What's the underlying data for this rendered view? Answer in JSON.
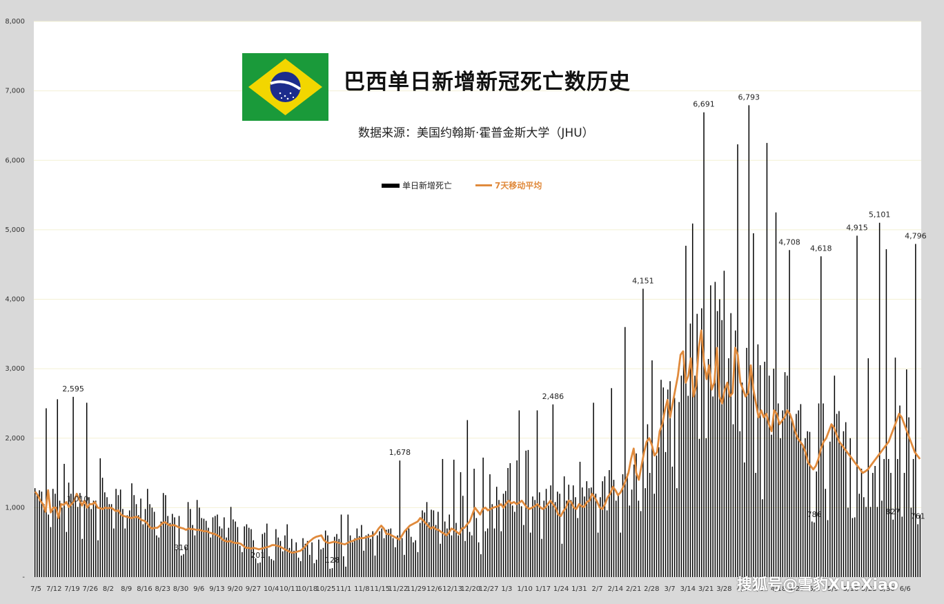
{
  "chart_data": {
    "type": "bar",
    "title": "巴西单日新增新冠死亡数历史",
    "subtitle": "数据来源：美国约翰斯·霍普金斯大学（JHU）",
    "ylim": [
      0,
      8000
    ],
    "y_ticks": [
      "-",
      "1,000",
      "2,000",
      "3,000",
      "4,000",
      "5,000",
      "6,000",
      "7,000",
      "8,000"
    ],
    "x_tick_labels": [
      "7/5",
      "7/12",
      "7/19",
      "7/26",
      "8/2",
      "8/9",
      "8/16",
      "8/23",
      "8/30",
      "9/6",
      "9/13",
      "9/20",
      "9/27",
      "10/4",
      "10/11",
      "10/18",
      "10/25",
      "11/1",
      "11/8",
      "11/15",
      "11/22",
      "11/29",
      "12/6",
      "12/13",
      "12/20",
      "12/27",
      "1/3",
      "1/10",
      "1/17",
      "1/24",
      "1/31",
      "2/7",
      "2/14",
      "2/21",
      "2/28",
      "3/7",
      "3/14",
      "3/21",
      "3/28",
      "4/4",
      "4/11",
      "4/18",
      "4/25",
      "5/2",
      "5/9",
      "5/16",
      "5/23",
      "5/30",
      "6/6"
    ],
    "grid": true,
    "legend_position": "top-center",
    "series": [
      {
        "name": "单日新增死亡",
        "type": "bar",
        "color": "#000000",
        "values": [
          1280,
          1200,
          1250,
          1230,
          1050,
          2430,
          900,
          720,
          1270,
          1200,
          2560,
          1100,
          1000,
          1630,
          650,
          1360,
          1200,
          2595,
          1100,
          1010,
          1210,
          550,
          1050,
          2510,
          1150,
          980,
          1100,
          1100,
          530,
          1710,
          1430,
          1220,
          1150,
          1050,
          1050,
          700,
          1270,
          1180,
          1260,
          980,
          700,
          890,
          960,
          1350,
          1180,
          1050,
          890,
          1130,
          760,
          980,
          1270,
          1050,
          1000,
          940,
          600,
          570,
          800,
          1210,
          1180,
          880,
          780,
          910,
          860,
          400,
          880,
          310,
          330,
          440,
          1080,
          980,
          750,
          600,
          1110,
          1000,
          850,
          840,
          810,
          710,
          570,
          860,
          880,
          900,
          730,
          700,
          860,
          570,
          710,
          1010,
          830,
          800,
          720,
          450,
          360,
          730,
          760,
          710,
          690,
          530,
          270,
          201,
          210,
          620,
          640,
          770,
          300,
          260,
          240,
          690,
          570,
          520,
          370,
          600,
          760,
          420,
          550,
          380,
          500,
          280,
          230,
          560,
          480,
          520,
          320,
          500,
          200,
          250,
          540,
          400,
          420,
          670,
          600,
          120,
          128,
          580,
          620,
          550,
          900,
          300,
          150,
          900,
          600,
          500,
          560,
          700,
          590,
          750,
          380,
          600,
          620,
          550,
          660,
          310,
          600,
          660,
          700,
          560,
          680,
          690,
          700,
          560,
          430,
          600,
          1678,
          560,
          320,
          680,
          700,
          580,
          500,
          530,
          360,
          780,
          960,
          930,
          1080,
          790,
          970,
          960,
          750,
          940,
          480,
          1700,
          800,
          700,
          900,
          600,
          1690,
          780,
          600,
          1510,
          1170,
          520,
          2260,
          650,
          600,
          1560,
          850,
          500,
          330,
          1720,
          660,
          700,
          1480,
          1050,
          700,
          1300,
          1110,
          660,
          1200,
          1240,
          1570,
          1640,
          1030,
          940,
          1680,
          2400,
          1020,
          750,
          1820,
          1830,
          640,
          1160,
          1110,
          2400,
          1220,
          550,
          1100,
          1270,
          1030,
          1320,
          2486,
          1080,
          1230,
          1200,
          480,
          1450,
          1100,
          1330,
          1110,
          1320,
          1150,
          850,
          1660,
          1290,
          1160,
          1380,
          1280,
          1290,
          2510,
          1200,
          640,
          1150,
          1380,
          1450,
          960,
          1540,
          2720,
          1400,
          1100,
          1200,
          640,
          1480,
          3600,
          1490,
          1030,
          1260,
          1620,
          1780,
          1100,
          950,
          4151,
          1280,
          2200,
          1500,
          3120,
          1200,
          1750,
          1870,
          2840,
          2730,
          1800,
          2700,
          2820,
          1590,
          2580,
          1280,
          2520,
          2900,
          3250,
          4770,
          2610,
          3650,
          5090,
          2900,
          3790,
          1990,
          3870,
          6691,
          2000,
          3140,
          4200,
          2600,
          4250,
          3830,
          4000,
          3700,
          4410,
          2750,
          3150,
          3800,
          2200,
          3550,
          6230,
          2100,
          2800,
          1650,
          3300,
          6793,
          2950,
          4950,
          1500,
          3350,
          3050,
          1120,
          3100,
          6250,
          2900,
          2050,
          3000,
          5250,
          2500,
          2000,
          2400,
          2950,
          2900,
          4708,
          2280,
          2150,
          2350,
          2400,
          2490,
          1900,
          2000,
          2100,
          2090,
          800,
          786,
          1520,
          2500,
          4618,
          2500,
          1270,
          820,
          1950,
          2200,
          2900,
          2350,
          2390,
          1930,
          2100,
          2230,
          1000,
          2000,
          850,
          860,
          4915,
          1200,
          1560,
          1150,
          1010,
          3150,
          1010,
          1500,
          1600,
          1010,
          5101,
          1100,
          1700,
          4720,
          1700,
          1500,
          827,
          3160,
          1700,
          2470,
          870,
          1500,
          2990,
          2300,
          1000,
          1700,
          4796,
          761,
          900
        ]
      },
      {
        "name": "7天移动平均",
        "type": "line",
        "color": "#e08a3c",
        "values": [
          1230,
          1180,
          1100,
          1050,
          940,
          1250,
          930,
          1000,
          1000,
          850,
          1050,
          1040,
          1080,
          1010,
          1050,
          1100,
          1200,
          1120,
          1030,
          1100,
          1000,
          1050,
          1050,
          1080,
          1000,
          990,
          980,
          1000,
          990,
          1000,
          980,
          950,
          960,
          900,
          880,
          870,
          860,
          850,
          860,
          870,
          850,
          820,
          810,
          780,
          720,
          700,
          710,
          710,
          740,
          780,
          790,
          760,
          740,
          750,
          740,
          720,
          710,
          700,
          680,
          700,
          690,
          690,
          680,
          680,
          670,
          660,
          660,
          640,
          630,
          620,
          600,
          580,
          540,
          520,
          510,
          520,
          500,
          490,
          490,
          480,
          450,
          420,
          420,
          410,
          420,
          410,
          400,
          410,
          420,
          430,
          440,
          460,
          460,
          450,
          440,
          420,
          400,
          380,
          360,
          350,
          360,
          370,
          380,
          410,
          450,
          500,
          530,
          560,
          580,
          590,
          600,
          530,
          500,
          490,
          500,
          510,
          500,
          490,
          480,
          470,
          490,
          510,
          520,
          540,
          550,
          560,
          560,
          570,
          580,
          590,
          600,
          640,
          700,
          740,
          700,
          620,
          620,
          600,
          580,
          560,
          540,
          600,
          660,
          700,
          740,
          760,
          780,
          800,
          850,
          820,
          780,
          740,
          700,
          720,
          690,
          680,
          650,
          630,
          600,
          640,
          700,
          680,
          650,
          620,
          700,
          710,
          760,
          800,
          900,
          1000,
          950,
          900,
          980,
          1000,
          960,
          980,
          1000,
          1010,
          1020,
          1050,
          1000,
          1060,
          1100,
          1060,
          1080,
          1050,
          1070,
          1100,
          1050,
          1000,
          980,
          1000,
          1020,
          1050,
          1010,
          980,
          1000,
          1050,
          1100,
          1050,
          1000,
          900,
          880,
          950,
          1000,
          1100,
          1080,
          1000,
          980,
          1050,
          1020,
          1010,
          1080,
          1100,
          1200,
          1150,
          1080,
          1000,
          980,
          1050,
          1150,
          1200,
          1300,
          1250,
          1180,
          1220,
          1300,
          1400,
          1500,
          1700,
          1850,
          1500,
          1400,
          1600,
          1800,
          1950,
          2000,
          1900,
          1750,
          1800,
          2100,
          2200,
          2400,
          2550,
          2300,
          2500,
          2700,
          2900,
          3200,
          3250,
          2800,
          2900,
          3150,
          2600,
          2750,
          3300,
          3550,
          3100,
          2850,
          3050,
          2700,
          2800,
          3300,
          2600,
          2500,
          2700,
          2800,
          2600,
          2650,
          3300,
          3200,
          2800,
          2700,
          2600,
          2650,
          3050,
          2700,
          2500,
          2300,
          2400,
          2300,
          2350,
          2200,
          2100,
          2400,
          2350,
          2200,
          2250,
          2300,
          2400,
          2350,
          2250,
          2100,
          2000,
          1950,
          1900,
          1800,
          1650,
          1600,
          1550,
          1600,
          1700,
          1850,
          1950,
          2000,
          2100,
          2200,
          2150,
          2050,
          1950,
          1900,
          1850,
          1800,
          1750,
          1700,
          1650,
          1600,
          1550,
          1500,
          1520,
          1550,
          1600,
          1650,
          1700,
          1750,
          1800,
          1850,
          1900,
          1950,
          2050,
          2150,
          2250,
          2350,
          2300,
          2200,
          2100,
          2000,
          1900,
          1800,
          1750,
          1700
        ]
      }
    ],
    "annotations": [
      {
        "label": "2,595"
      },
      {
        "label": "310"
      },
      {
        "label": "201"
      },
      {
        "label": "128"
      },
      {
        "label": "1,678"
      },
      {
        "label": "2,486"
      },
      {
        "label": "4,151"
      },
      {
        "label": "6,691"
      },
      {
        "label": "6,793"
      },
      {
        "label": "4,708"
      },
      {
        "label": "786"
      },
      {
        "label": "4,618"
      },
      {
        "label": "4,915"
      },
      {
        "label": "1,010"
      },
      {
        "label": "5,101"
      },
      {
        "label": "827"
      },
      {
        "label": "4,796"
      },
      {
        "label": "761"
      }
    ]
  },
  "watermark": "搜狐号@雪豹XueXiao",
  "flag_icon": "brazil-flag-icon",
  "colors": {
    "bars": "#000000",
    "line": "#e08a3c",
    "plot_bg": "#ffffff",
    "page_bg": "#d9d9d9"
  }
}
